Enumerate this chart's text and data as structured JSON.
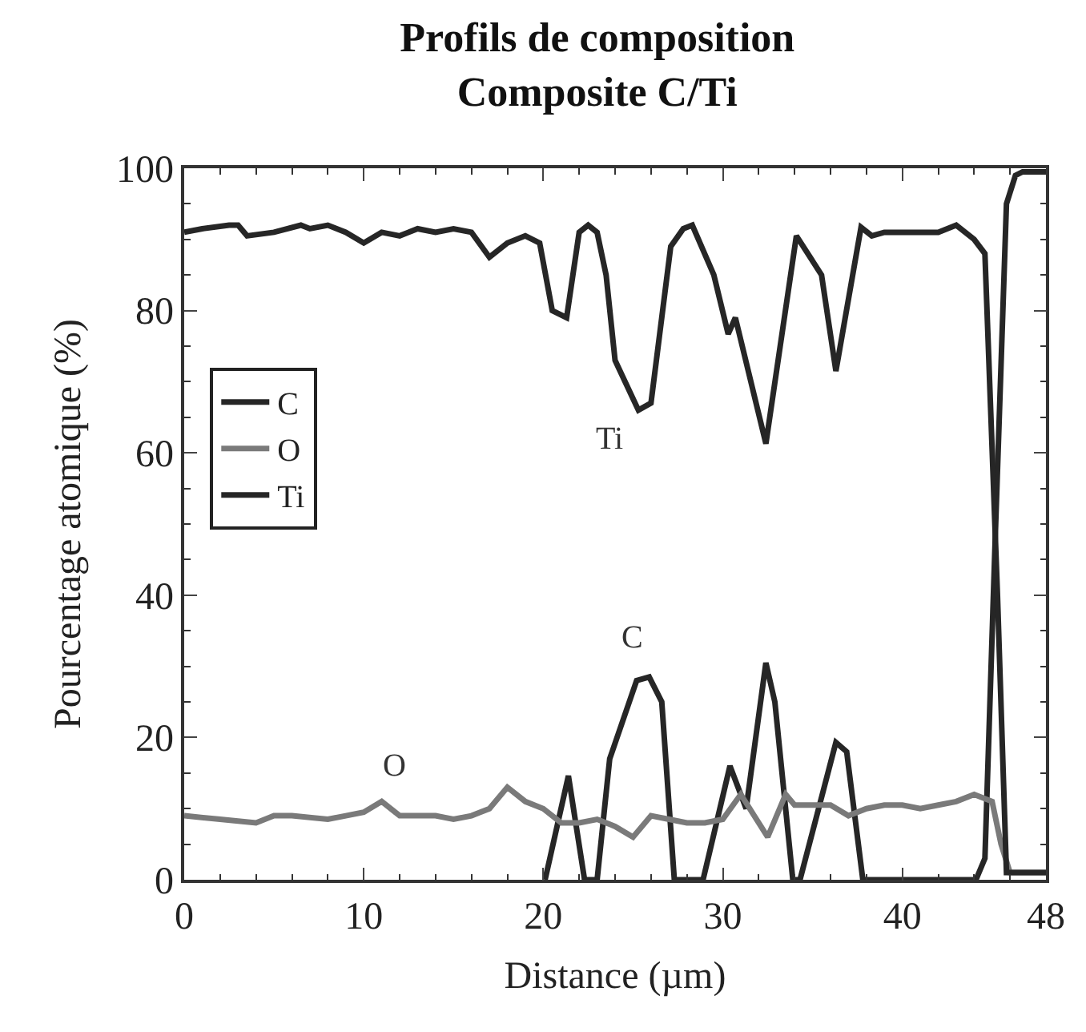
{
  "chart_data": {
    "type": "line",
    "title": "Profils de composition\nComposite C/Ti",
    "xlabel": "Distance (µm)",
    "ylabel": "Pourcentage atomique (%)",
    "xlim": [
      0,
      48
    ],
    "xticks": [
      0,
      10,
      20,
      30,
      40,
      48
    ],
    "ylim": [
      0,
      100
    ],
    "yticks": [
      0,
      20,
      40,
      60,
      80,
      100
    ],
    "legend": "top left",
    "marker": "none",
    "line_style": "solid",
    "series": [
      {
        "name": "C",
        "color": "#262626",
        "x": [
          20.1,
          21.4,
          22.3,
          23.0,
          23.7,
          25.2,
          25.9,
          26.6,
          27.3,
          28.9,
          30.4,
          31.3,
          32.4,
          32.9,
          33.9,
          34.3,
          36.3,
          36.9,
          37.8,
          44.1,
          44.6,
          45.2,
          45.8,
          46.3,
          46.7,
          48
        ],
        "values": [
          0,
          14.6,
          0,
          0,
          17,
          28,
          28.5,
          25,
          0,
          0,
          16,
          10,
          30.5,
          25,
          0,
          0,
          19.3,
          18,
          0,
          0,
          3,
          50,
          95,
          99,
          99.5,
          99.5
        ]
      },
      {
        "name": "O",
        "color": "#7a7a7a",
        "x": [
          0,
          2,
          4,
          5,
          6,
          8,
          9,
          10,
          11,
          12,
          14,
          15,
          16,
          17,
          18,
          19,
          20,
          21,
          22,
          23,
          24,
          25,
          26,
          27,
          28,
          29,
          30,
          31,
          31.5,
          32.5,
          33.5,
          34,
          36,
          37,
          38,
          39,
          40,
          41,
          42,
          43,
          44,
          45,
          45.5,
          46,
          48
        ],
        "values": [
          9,
          8.5,
          8,
          9,
          9,
          8.5,
          9,
          9.5,
          11,
          9,
          9,
          8.5,
          9,
          10,
          13,
          11,
          10,
          8,
          8,
          8.5,
          7.5,
          6,
          9,
          8.5,
          8,
          8,
          8.5,
          12,
          10,
          6,
          12,
          10.5,
          10.5,
          9,
          10,
          10.5,
          10.5,
          10,
          10.5,
          11,
          12,
          11,
          5,
          1,
          1
        ]
      },
      {
        "name": "Ti",
        "color": "#262626",
        "x": [
          0,
          1,
          2.5,
          3,
          3.5,
          5,
          6.5,
          7,
          8,
          9,
          10,
          11,
          12,
          13,
          14,
          15,
          16,
          17,
          18,
          19,
          19.8,
          20.5,
          21.3,
          22,
          22.5,
          23,
          23.5,
          24,
          25.3,
          26,
          27.1,
          27.8,
          28.3,
          29.5,
          30.3,
          30.7,
          32.4,
          34.1,
          35.5,
          36.3,
          37.7,
          38.3,
          39,
          42,
          43,
          44,
          44.6,
          45.3,
          45.8,
          48
        ],
        "values": [
          91,
          91.5,
          92,
          92,
          90.5,
          91,
          92,
          91.5,
          92,
          91,
          89.5,
          91,
          90.5,
          91.5,
          91,
          91.5,
          91,
          87.5,
          89.5,
          90.5,
          89.5,
          80,
          79,
          91,
          92,
          91,
          85,
          73,
          66,
          67,
          89,
          91.5,
          92,
          85,
          76.7,
          79,
          61.3,
          90.5,
          85,
          71.5,
          91.7,
          90.5,
          91,
          91,
          92,
          90,
          88,
          40,
          1,
          1
        ]
      }
    ],
    "annotations": [
      "Ti",
      "C",
      "O"
    ]
  }
}
